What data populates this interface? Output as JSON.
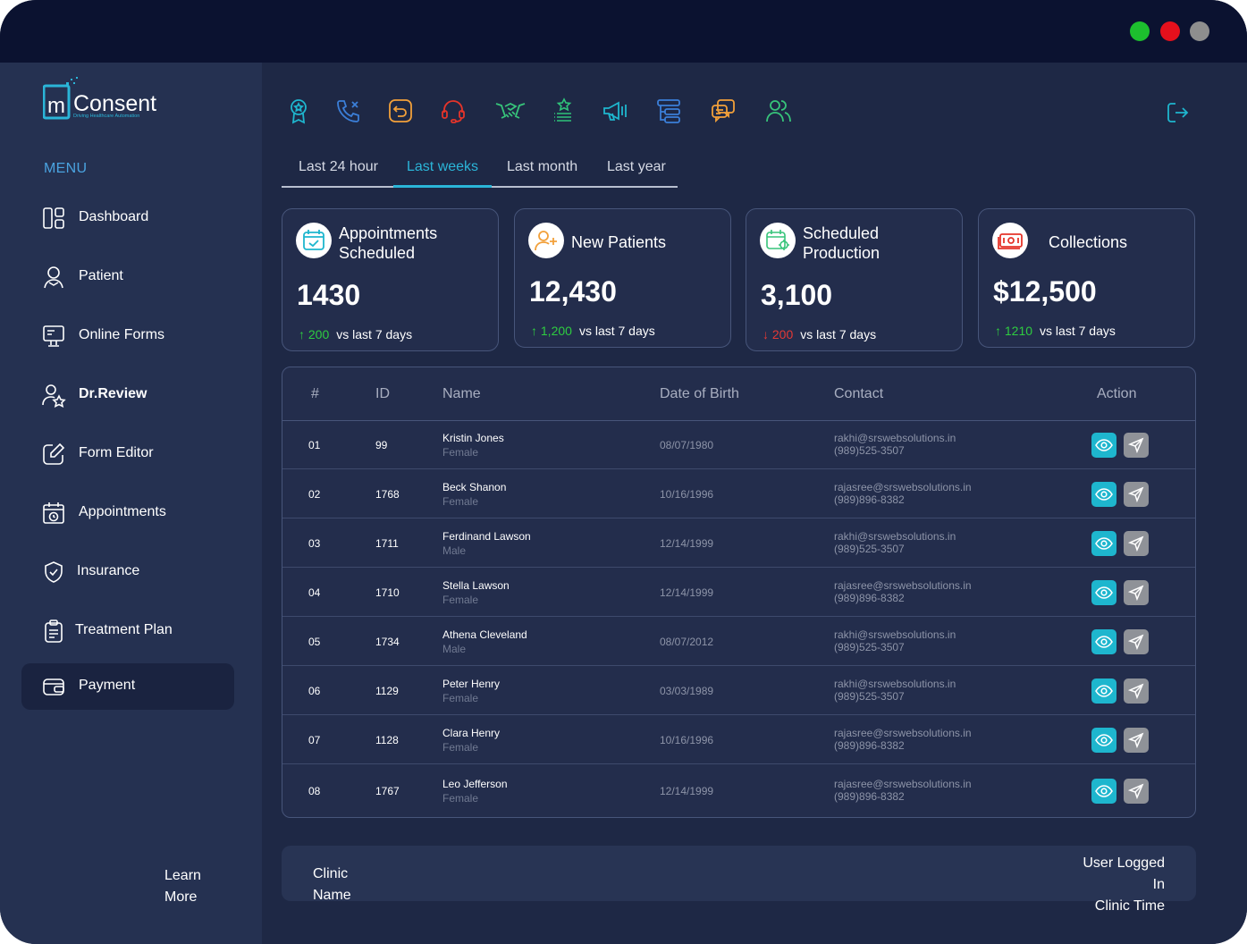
{
  "window": {
    "controls": [
      {
        "name": "maximize",
        "color": "#1dbf2e"
      },
      {
        "name": "close",
        "color": "#e5101c"
      },
      {
        "name": "minimize",
        "color": "#8e8e8e"
      }
    ]
  },
  "logo": {
    "text": "Consent",
    "prefix": "m",
    "tagline": "Driving Healthcare Automation"
  },
  "sidebar": {
    "menu_title": "MENU",
    "items": [
      {
        "label": "Dashboard",
        "icon": "dashboard-icon"
      },
      {
        "label": "Patient",
        "icon": "patient-icon"
      },
      {
        "label": "Online Forms",
        "icon": "monitor-form-icon"
      },
      {
        "label": "Dr.Review",
        "icon": "user-star-icon"
      },
      {
        "label": "Form Editor",
        "icon": "edit-icon"
      },
      {
        "label": "Appointments",
        "icon": "calendar-clock-icon"
      },
      {
        "label": "Insurance",
        "icon": "shield-check-icon"
      },
      {
        "label": "Treatment Plan",
        "icon": "clipboard-icon"
      },
      {
        "label": "Payment",
        "icon": "wallet-icon",
        "active": true
      }
    ],
    "learn_more": {
      "line1": "Learn",
      "line2": "More"
    }
  },
  "toolbar": {
    "icons": [
      "award-icon",
      "phone-icon",
      "undo-icon",
      "headset-icon",
      "handshake-icon",
      "star-list-icon",
      "megaphone-icon",
      "tree-list-icon",
      "chat-icon",
      "users-icon"
    ],
    "logout": "logout-icon"
  },
  "tabs": [
    "Last 24 hour",
    "Last weeks",
    "Last month",
    "Last year"
  ],
  "active_tab": "Last weeks",
  "cards": [
    {
      "title_line1": "Appointments",
      "title_line2": "Scheduled",
      "value": "1430",
      "delta": "200",
      "direction": "up",
      "vs": "vs last 7 days",
      "icon": "calendar-check-icon"
    },
    {
      "title_line1": "New Patients",
      "title_line2": "",
      "value": "12,430",
      "delta": "1,200",
      "direction": "up",
      "vs": "vs last 7 days",
      "icon": "user-plus-icon"
    },
    {
      "title_line1": "Scheduled",
      "title_line2": "Production",
      "value": "3,100",
      "delta": "200",
      "direction": "down",
      "vs": "vs last 7 days",
      "icon": "calendar-gear-icon"
    },
    {
      "title_line1": "Collections",
      "title_line2": "",
      "value": "$12,500",
      "delta": "1210",
      "direction": "up",
      "vs": "vs last 7 days",
      "icon": "money-icon"
    }
  ],
  "table": {
    "headers": [
      "#",
      "ID",
      "Name",
      "Date of Birth",
      "Contact",
      "Action"
    ],
    "rows": [
      {
        "num": "01",
        "id": "99",
        "name": "Kristin Jones",
        "gender": "Female",
        "dob": "08/07/1980",
        "email": "rakhi@srswebsolutions.in",
        "phone": "(989)525-3507"
      },
      {
        "num": "02",
        "id": "1768",
        "name": "Beck Shanon",
        "gender": "Female",
        "dob": "10/16/1996",
        "email": "rajasree@srswebsolutions.in",
        "phone": "(989)896-8382"
      },
      {
        "num": "03",
        "id": "1711",
        "name": "Ferdinand Lawson",
        "gender": "Male",
        "dob": "12/14/1999",
        "email": "rakhi@srswebsolutions.in",
        "phone": "(989)525-3507"
      },
      {
        "num": "04",
        "id": "1710",
        "name": "Stella Lawson",
        "gender": "Female",
        "dob": "12/14/1999",
        "email": "rajasree@srswebsolutions.in",
        "phone": "(989)896-8382"
      },
      {
        "num": "05",
        "id": "1734",
        "name": "Athena Cleveland",
        "gender": "Male",
        "dob": "08/07/2012",
        "email": "rakhi@srswebsolutions.in",
        "phone": "(989)525-3507"
      },
      {
        "num": "06",
        "id": "1129",
        "name": "Peter Henry",
        "gender": "Female",
        "dob": "03/03/1989",
        "email": "rakhi@srswebsolutions.in",
        "phone": "(989)525-3507"
      },
      {
        "num": "07",
        "id": "1128",
        "name": "Clara Henry",
        "gender": "Female",
        "dob": "10/16/1996",
        "email": "rajasree@srswebsolutions.in",
        "phone": "(989)896-8382"
      },
      {
        "num": "08",
        "id": "1767",
        "name": "Leo Jefferson",
        "gender": "Female",
        "dob": "12/14/1999",
        "email": "rajasree@srswebsolutions.in",
        "phone": "(989)896-8382"
      }
    ]
  },
  "footer": {
    "clinic_line1": "Clinic",
    "clinic_line2": "Name",
    "user_line1": "User Logged",
    "user_line2": "In",
    "user_line3": "Clinic Time"
  },
  "colors": {
    "accent": "#2bb5d8",
    "up": "#2ecc40",
    "down": "#e53935",
    "view_button": "#1eb6ce",
    "send_button": "#8f9298"
  }
}
